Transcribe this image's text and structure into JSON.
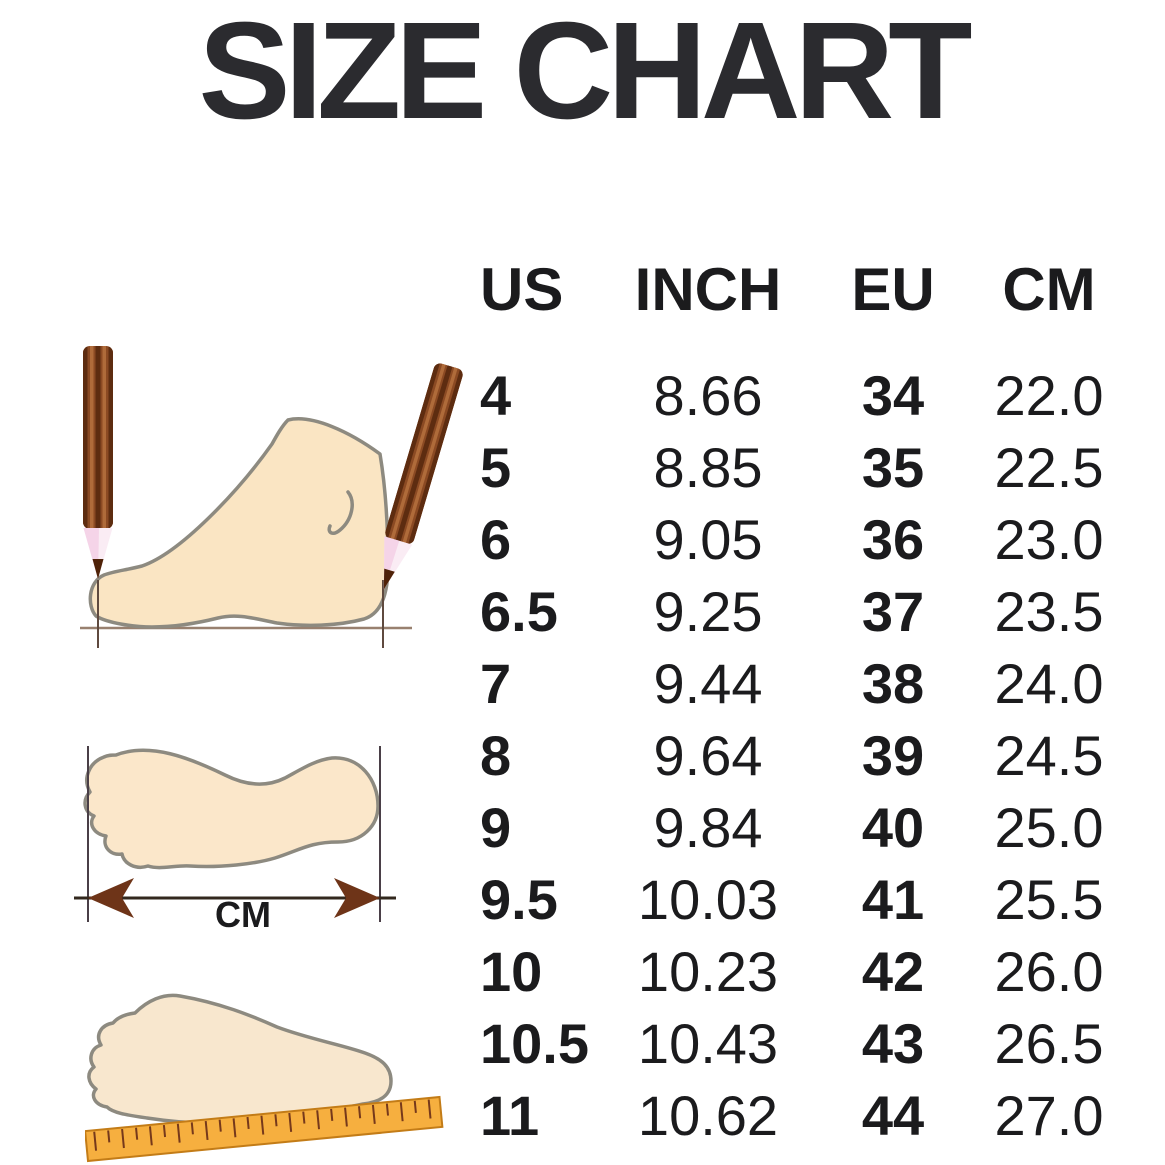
{
  "title": "SIZE CHART",
  "illustrations": {
    "cm_label": "CM",
    "icons": [
      "pencil-icon",
      "foot-side-icon",
      "footprint-icon",
      "foot-top-ruler-icon"
    ]
  },
  "chart_data": {
    "type": "table",
    "title": "SIZE CHART",
    "columns": [
      "US",
      "INCH",
      "EU",
      "CM"
    ],
    "rows": [
      [
        "4",
        "8.66",
        "34",
        "22.0"
      ],
      [
        "5",
        "8.85",
        "35",
        "22.5"
      ],
      [
        "6",
        "9.05",
        "36",
        "23.0"
      ],
      [
        "6.5",
        "9.25",
        "37",
        "23.5"
      ],
      [
        "7",
        "9.44",
        "38",
        "24.0"
      ],
      [
        "8",
        "9.64",
        "39",
        "24.5"
      ],
      [
        "9",
        "9.84",
        "40",
        "25.0"
      ],
      [
        "9.5",
        "10.03",
        "41",
        "25.5"
      ],
      [
        "10",
        "10.23",
        "42",
        "26.0"
      ],
      [
        "10.5",
        "10.43",
        "43",
        "26.5"
      ],
      [
        "11",
        "10.62",
        "44",
        "27.0"
      ]
    ],
    "bold_columns": [
      "US",
      "EU"
    ],
    "layout": "header row on top, 11 data rows, no gridlines"
  },
  "colors": {
    "background": "#ffffff",
    "title_text": "#2b2b2f",
    "table_text": "#1b1b1d",
    "foot_fill": "#fae5c3",
    "footprint_fill": "#fbe7ca",
    "foot_top_fill": "#f8e7ce",
    "foot_outline": "#8d8a80",
    "pencil_body": "#8b4a23",
    "pencil_dark_stripe": "#5d2c10",
    "pencil_light_stripe": "#af6b3a",
    "pencil_tip": "#faecf4",
    "pencil_lead": "#4f2208",
    "ruler_fill": "#f6af3f",
    "ruler_border": "#c37c17",
    "ruler_tick": "#76391b",
    "arrowhead": "#6e3418",
    "dimension_line": "#32281e",
    "baseline": "#98806f",
    "tick_line": "#5f4a3f",
    "boundary_line": "#4a3f47"
  }
}
